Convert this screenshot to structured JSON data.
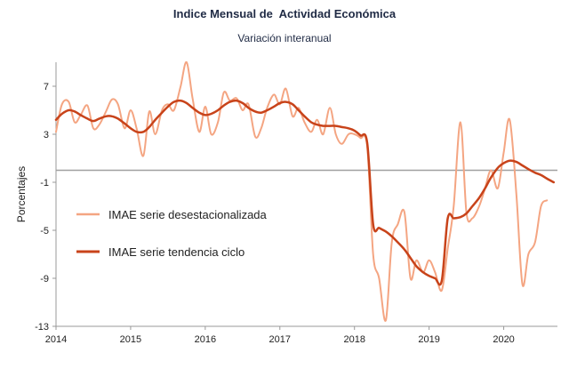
{
  "title": "Indice Mensual de  Actividad Económica",
  "subtitle": "Variación interanual",
  "chart_data": {
    "type": "line",
    "title": "Indice Mensual de  Actividad Económica",
    "subtitle": "Variación interanual",
    "xlabel": "",
    "ylabel": "Porcentajes",
    "xlim": [
      2014,
      2020.72
    ],
    "ylim": [
      -13,
      9
    ],
    "x_ticks": [
      "2014",
      "2015",
      "2016",
      "2017",
      "2018",
      "2019",
      "2020"
    ],
    "y_ticks": [
      "7",
      "3",
      "-1",
      "-5",
      "-9",
      "-13"
    ],
    "reference_line": 0,
    "grid": false,
    "legend_position": "center-left",
    "colors": {
      "desestacionalizada": "#f4a582",
      "tendencia": "#c8431a",
      "reference": "#a0a0a0",
      "axis": "#999999"
    },
    "series": [
      {
        "name": "IMAE serie desestacionalizada",
        "points": [
          [
            2014.0,
            3.2
          ],
          [
            2014.08,
            5.5
          ],
          [
            2014.17,
            5.7
          ],
          [
            2014.25,
            4.0
          ],
          [
            2014.33,
            4.6
          ],
          [
            2014.42,
            5.4
          ],
          [
            2014.5,
            3.5
          ],
          [
            2014.58,
            3.8
          ],
          [
            2014.67,
            4.9
          ],
          [
            2014.75,
            5.9
          ],
          [
            2014.83,
            5.5
          ],
          [
            2014.92,
            3.5
          ],
          [
            2015.0,
            5.0
          ],
          [
            2015.08,
            3.5
          ],
          [
            2015.17,
            1.2
          ],
          [
            2015.25,
            4.9
          ],
          [
            2015.33,
            3.0
          ],
          [
            2015.42,
            5.0
          ],
          [
            2015.5,
            5.5
          ],
          [
            2015.58,
            5.0
          ],
          [
            2015.67,
            7.0
          ],
          [
            2015.75,
            9.0
          ],
          [
            2015.83,
            6.0
          ],
          [
            2015.92,
            3.2
          ],
          [
            2016.0,
            5.3
          ],
          [
            2016.08,
            3.0
          ],
          [
            2016.17,
            4.0
          ],
          [
            2016.25,
            6.5
          ],
          [
            2016.33,
            5.8
          ],
          [
            2016.42,
            6.0
          ],
          [
            2016.5,
            5.0
          ],
          [
            2016.58,
            5.5
          ],
          [
            2016.67,
            2.8
          ],
          [
            2016.75,
            3.5
          ],
          [
            2016.83,
            5.2
          ],
          [
            2016.92,
            6.3
          ],
          [
            2017.0,
            5.5
          ],
          [
            2017.08,
            6.8
          ],
          [
            2017.17,
            4.5
          ],
          [
            2017.25,
            5.2
          ],
          [
            2017.33,
            4.0
          ],
          [
            2017.42,
            3.2
          ],
          [
            2017.5,
            4.2
          ],
          [
            2017.58,
            3.0
          ],
          [
            2017.67,
            5.2
          ],
          [
            2017.75,
            3.0
          ],
          [
            2017.83,
            2.2
          ],
          [
            2017.92,
            3.0
          ],
          [
            2018.0,
            3.0
          ],
          [
            2018.08,
            2.7
          ],
          [
            2018.17,
            2.0
          ],
          [
            2018.25,
            -7.0
          ],
          [
            2018.33,
            -9.0
          ],
          [
            2018.42,
            -12.5
          ],
          [
            2018.5,
            -6.0
          ],
          [
            2018.58,
            -4.5
          ],
          [
            2018.67,
            -3.5
          ],
          [
            2018.75,
            -9.0
          ],
          [
            2018.83,
            -7.5
          ],
          [
            2018.92,
            -8.5
          ],
          [
            2019.0,
            -7.5
          ],
          [
            2019.08,
            -8.5
          ],
          [
            2019.17,
            -10.0
          ],
          [
            2019.25,
            -6.5
          ],
          [
            2019.33,
            -3.0
          ],
          [
            2019.42,
            4.0
          ],
          [
            2019.5,
            -3.5
          ],
          [
            2019.58,
            -4.0
          ],
          [
            2019.67,
            -3.0
          ],
          [
            2019.75,
            -1.5
          ],
          [
            2019.83,
            0.0
          ],
          [
            2019.92,
            -1.5
          ],
          [
            2020.0,
            1.5
          ],
          [
            2020.08,
            4.2
          ],
          [
            2020.17,
            -2.0
          ],
          [
            2020.25,
            -9.5
          ],
          [
            2020.33,
            -7.0
          ],
          [
            2020.42,
            -6.0
          ],
          [
            2020.5,
            -3.0
          ],
          [
            2020.58,
            -2.5
          ]
        ]
      },
      {
        "name": "IMAE serie  tendencia ciclo",
        "points": [
          [
            2014.0,
            4.2
          ],
          [
            2014.08,
            4.7
          ],
          [
            2014.17,
            5.0
          ],
          [
            2014.25,
            4.9
          ],
          [
            2014.33,
            4.6
          ],
          [
            2014.42,
            4.3
          ],
          [
            2014.5,
            4.1
          ],
          [
            2014.58,
            4.3
          ],
          [
            2014.67,
            4.5
          ],
          [
            2014.75,
            4.5
          ],
          [
            2014.83,
            4.3
          ],
          [
            2014.92,
            3.9
          ],
          [
            2015.0,
            3.5
          ],
          [
            2015.08,
            3.2
          ],
          [
            2015.17,
            3.2
          ],
          [
            2015.25,
            3.6
          ],
          [
            2015.33,
            4.2
          ],
          [
            2015.42,
            4.8
          ],
          [
            2015.5,
            5.3
          ],
          [
            2015.58,
            5.7
          ],
          [
            2015.67,
            5.8
          ],
          [
            2015.75,
            5.6
          ],
          [
            2015.83,
            5.2
          ],
          [
            2015.92,
            4.8
          ],
          [
            2016.0,
            4.6
          ],
          [
            2016.08,
            4.7
          ],
          [
            2016.17,
            5.0
          ],
          [
            2016.25,
            5.4
          ],
          [
            2016.33,
            5.7
          ],
          [
            2016.42,
            5.8
          ],
          [
            2016.5,
            5.6
          ],
          [
            2016.58,
            5.2
          ],
          [
            2016.67,
            4.9
          ],
          [
            2016.75,
            4.8
          ],
          [
            2016.83,
            5.0
          ],
          [
            2016.92,
            5.3
          ],
          [
            2017.0,
            5.6
          ],
          [
            2017.08,
            5.7
          ],
          [
            2017.17,
            5.5
          ],
          [
            2017.25,
            5.0
          ],
          [
            2017.33,
            4.5
          ],
          [
            2017.42,
            4.0
          ],
          [
            2017.5,
            3.8
          ],
          [
            2017.58,
            3.7
          ],
          [
            2017.67,
            3.7
          ],
          [
            2017.75,
            3.7
          ],
          [
            2017.83,
            3.6
          ],
          [
            2017.92,
            3.5
          ],
          [
            2018.0,
            3.3
          ],
          [
            2018.08,
            2.9
          ],
          [
            2018.17,
            2.3
          ],
          [
            2018.25,
            -4.5
          ],
          [
            2018.33,
            -4.8
          ],
          [
            2018.42,
            -5.1
          ],
          [
            2018.5,
            -5.5
          ],
          [
            2018.58,
            -6.0
          ],
          [
            2018.67,
            -6.6
          ],
          [
            2018.75,
            -7.3
          ],
          [
            2018.83,
            -8.0
          ],
          [
            2018.92,
            -8.5
          ],
          [
            2019.0,
            -8.8
          ],
          [
            2019.08,
            -9.0
          ],
          [
            2019.17,
            -9.2
          ],
          [
            2019.25,
            -4.0
          ],
          [
            2019.33,
            -4.0
          ],
          [
            2019.42,
            -3.9
          ],
          [
            2019.5,
            -3.6
          ],
          [
            2019.58,
            -3.0
          ],
          [
            2019.67,
            -2.3
          ],
          [
            2019.75,
            -1.5
          ],
          [
            2019.83,
            -0.6
          ],
          [
            2019.92,
            0.2
          ],
          [
            2020.0,
            0.6
          ],
          [
            2020.08,
            0.8
          ],
          [
            2020.17,
            0.7
          ],
          [
            2020.25,
            0.4
          ],
          [
            2020.33,
            0.1
          ],
          [
            2020.42,
            -0.2
          ],
          [
            2020.5,
            -0.4
          ],
          [
            2020.58,
            -0.7
          ],
          [
            2020.67,
            -1.0
          ]
        ]
      }
    ]
  }
}
